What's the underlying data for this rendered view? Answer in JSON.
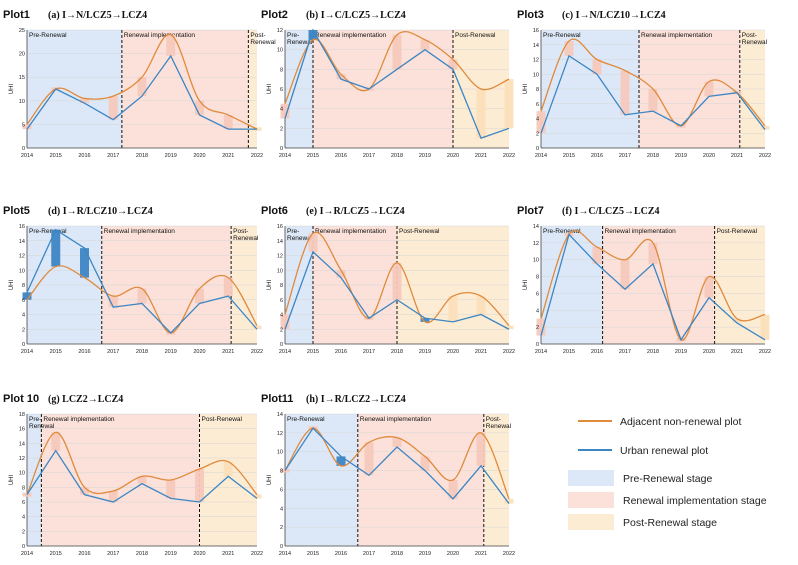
{
  "legend": {
    "adjacent": "Adjacent non-renewal plot",
    "urban": "Urban renewal plot",
    "pre": "Pre-Renewal stage",
    "impl": "Renewal implementation stage",
    "post": "Post-Renewal stage"
  },
  "colors": {
    "adjacent": "#e08a3c",
    "urban": "#3d86c4",
    "pre_bg": "#dce8f7",
    "impl_bg": "#fbe1d9",
    "post_bg": "#fdecd4",
    "bar_pos": "#f6c9bd",
    "bar_post": "#fbdfb9",
    "bar_blue": "#3d86c4"
  },
  "x_ticks": [
    "2014",
    "2015",
    "2016",
    "2017",
    "2018",
    "2019",
    "2020",
    "2021",
    "2022"
  ],
  "ylabel": "UHI",
  "chart_data": [
    {
      "type": "line",
      "title": "Plot1",
      "sub": "(a)  I→N/LCZ5→LCZ4",
      "ylim": [
        0,
        25
      ],
      "yticks": [
        0,
        5,
        10,
        15,
        20,
        25
      ],
      "stages": [
        {
          "label": "Pre-Renewal",
          "start": 2014,
          "end": 2017.3,
          "kind": "pre"
        },
        {
          "label": "Renewal implementation",
          "start": 2017.3,
          "end": 2021.7,
          "kind": "impl"
        },
        {
          "label": "Post-\nRenewal",
          "start": 2021.7,
          "end": 2022,
          "kind": "post"
        }
      ],
      "series": [
        {
          "name": "Adjacent non-renewal plot",
          "values": [
            5,
            12.5,
            10.5,
            11,
            15,
            24,
            10,
            7,
            4
          ]
        },
        {
          "name": "Urban renewal plot",
          "values": [
            4,
            12.5,
            9.5,
            6,
            11,
            19.5,
            7,
            4,
            4
          ]
        }
      ]
    },
    {
      "type": "line",
      "title": "Plot2",
      "sub": "(b)  I→C/LCZ5→LCZ4",
      "ylim": [
        0,
        12
      ],
      "yticks": [
        0,
        2,
        4,
        6,
        8,
        10,
        12
      ],
      "stages": [
        {
          "label": "Pre-\nRenewal",
          "start": 2014,
          "end": 2015,
          "kind": "pre"
        },
        {
          "label": "Renewal implementation",
          "start": 2015,
          "end": 2020,
          "kind": "impl"
        },
        {
          "label": "Post-Renewal",
          "start": 2020,
          "end": 2022,
          "kind": "post"
        }
      ],
      "series": [
        {
          "name": "Adjacent non-renewal plot",
          "values": [
            4.5,
            11,
            7.5,
            6,
            11.5,
            11,
            9,
            6,
            7
          ]
        },
        {
          "name": "Urban renewal plot",
          "values": [
            3,
            12,
            7,
            6,
            8,
            10,
            8,
            1,
            2
          ]
        }
      ]
    },
    {
      "type": "line",
      "title": "Plot3",
      "sub": "(c)  I→N/LCZ10→LCZ4",
      "ylim": [
        0,
        16
      ],
      "yticks": [
        0,
        2,
        4,
        6,
        8,
        10,
        12,
        14,
        16
      ],
      "stages": [
        {
          "label": "Pre-Renewal",
          "start": 2014,
          "end": 2017.5,
          "kind": "pre"
        },
        {
          "label": "Renewal implementation",
          "start": 2017.5,
          "end": 2021.1,
          "kind": "impl"
        },
        {
          "label": "Post-\nRenewal",
          "start": 2021.1,
          "end": 2022,
          "kind": "post"
        }
      ],
      "series": [
        {
          "name": "Adjacent non-renewal plot",
          "values": [
            5,
            14.5,
            12,
            10.5,
            8,
            3,
            9,
            7.5,
            3
          ]
        },
        {
          "name": "Urban renewal plot",
          "values": [
            2,
            12.5,
            10,
            4.5,
            5,
            3,
            7,
            7.5,
            2.5
          ]
        }
      ]
    },
    {
      "type": "line",
      "title": "Plot5",
      "sub": "(d)  I→R/LCZ10→LCZ4",
      "ylim": [
        0,
        16
      ],
      "yticks": [
        0,
        2,
        4,
        6,
        8,
        10,
        12,
        14,
        16
      ],
      "stages": [
        {
          "label": "Pre-Renewal",
          "start": 2014,
          "end": 2016.6,
          "kind": "pre"
        },
        {
          "label": "Renewal implementation",
          "start": 2016.6,
          "end": 2021.1,
          "kind": "impl"
        },
        {
          "label": "Post-\nRenewal",
          "start": 2021.1,
          "end": 2022,
          "kind": "post"
        }
      ],
      "series": [
        {
          "name": "Adjacent non-renewal plot",
          "values": [
            6,
            10.5,
            9,
            6.5,
            7.5,
            1.5,
            7.5,
            9,
            2.5
          ]
        },
        {
          "name": "Urban renewal plot",
          "values": [
            7,
            15.5,
            13,
            5,
            5.5,
            1.5,
            5.5,
            6.5,
            2
          ]
        }
      ]
    },
    {
      "type": "line",
      "title": "Plot6",
      "sub": "(e)  I→R/LCZ5→LCZ4",
      "ylim": [
        0,
        16
      ],
      "yticks": [
        0,
        2,
        4,
        6,
        8,
        10,
        12,
        14,
        16
      ],
      "stages": [
        {
          "label": "Pre-\nRenewal",
          "start": 2014,
          "end": 2015,
          "kind": "pre"
        },
        {
          "label": "Renewal implementation",
          "start": 2015,
          "end": 2018,
          "kind": "impl"
        },
        {
          "label": "Post-Renewal",
          "start": 2018,
          "end": 2022,
          "kind": "post"
        }
      ],
      "series": [
        {
          "name": "Adjacent non-renewal plot",
          "values": [
            4,
            15,
            10,
            3.5,
            11,
            3,
            6.5,
            6.5,
            2.5
          ]
        },
        {
          "name": "Urban renewal plot",
          "values": [
            2,
            12.5,
            9,
            3.5,
            6,
            3.5,
            3,
            4,
            2
          ]
        }
      ]
    },
    {
      "type": "line",
      "title": "Plot7",
      "sub": "(f)  I→C/LCZ5→LCZ4",
      "ylim": [
        0,
        14
      ],
      "yticks": [
        0,
        2,
        4,
        6,
        8,
        10,
        12,
        14
      ],
      "stages": [
        {
          "label": "Pre-Renewal",
          "start": 2014,
          "end": 2016.2,
          "kind": "pre"
        },
        {
          "label": "Renewal implementation",
          "start": 2016.2,
          "end": 2020.2,
          "kind": "impl"
        },
        {
          "label": "Post-Renewal",
          "start": 2020.2,
          "end": 2022,
          "kind": "post"
        }
      ],
      "series": [
        {
          "name": "Adjacent non-renewal plot",
          "values": [
            3,
            13,
            11.5,
            10,
            12,
            0.5,
            8,
            3,
            3.5
          ]
        },
        {
          "name": "Urban renewal plot",
          "values": [
            1,
            13,
            9.5,
            6.5,
            9.5,
            0.5,
            5.5,
            2.5,
            0.5
          ]
        }
      ]
    },
    {
      "type": "line",
      "title": "Plot 10",
      "sub": "(g)  LCZ2→LCZ4",
      "ylim": [
        0,
        18
      ],
      "yticks": [
        0,
        2,
        4,
        6,
        8,
        10,
        12,
        14,
        16,
        18
      ],
      "stages": [
        {
          "label": "Pre-\nRenewal",
          "start": 2014,
          "end": 2014.5,
          "kind": "pre"
        },
        {
          "label": "Renewal implementation",
          "start": 2014.5,
          "end": 2020,
          "kind": "impl"
        },
        {
          "label": "Post-Renewal",
          "start": 2020,
          "end": 2022,
          "kind": "post"
        }
      ],
      "series": [
        {
          "name": "Adjacent non-renewal plot",
          "values": [
            7,
            15.5,
            8,
            7.5,
            9.5,
            9,
            10.5,
            11.5,
            7
          ]
        },
        {
          "name": "Urban renewal plot",
          "values": [
            7,
            13,
            7,
            6,
            8.5,
            6.5,
            6,
            9.5,
            6.5
          ]
        }
      ]
    },
    {
      "type": "line",
      "title": "Plot11",
      "sub": "(h)  I→R/LCZ2→LCZ4",
      "ylim": [
        0,
        14
      ],
      "yticks": [
        0,
        2,
        4,
        6,
        8,
        10,
        12,
        14
      ],
      "stages": [
        {
          "label": "Pre-Renewal",
          "start": 2014,
          "end": 2016.6,
          "kind": "pre"
        },
        {
          "label": "Renewal implementation",
          "start": 2016.6,
          "end": 2021.1,
          "kind": "impl"
        },
        {
          "label": "Post-\nRenewal",
          "start": 2021.1,
          "end": 2022,
          "kind": "post"
        }
      ],
      "series": [
        {
          "name": "Adjacent non-renewal plot",
          "values": [
            8,
            12.5,
            8.5,
            11,
            11.5,
            9.5,
            7,
            12,
            5
          ]
        },
        {
          "name": "Urban renewal plot",
          "values": [
            8,
            12.5,
            9.5,
            7.5,
            10.5,
            8,
            5,
            8.5,
            4.5
          ]
        }
      ]
    }
  ]
}
